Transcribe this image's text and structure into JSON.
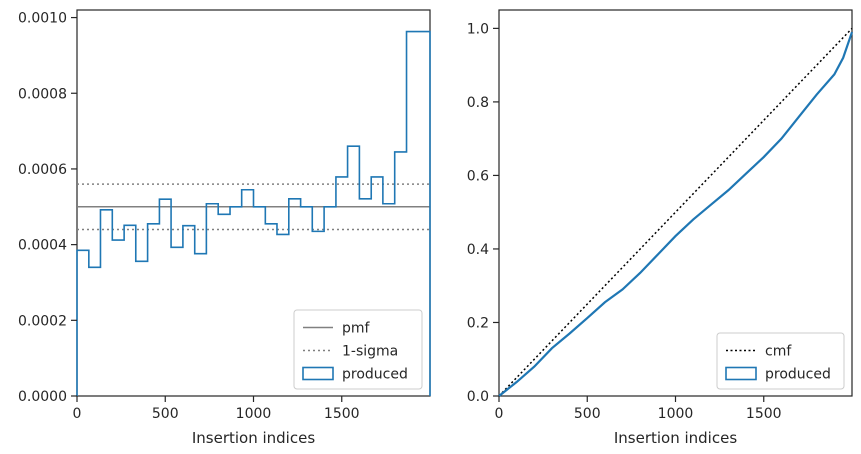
{
  "colors": {
    "produced": "#1f77b4",
    "pmf": "#808080",
    "sigma": "#808080",
    "cmf": "#000000"
  },
  "chart_data": [
    {
      "type": "step",
      "title": "",
      "xlabel": "Insertion indices",
      "ylabel": "",
      "xlim": [
        0,
        2000
      ],
      "ylim": [
        0,
        0.00102
      ],
      "xticks": [
        0,
        500,
        1000,
        1500
      ],
      "xtick_labels": [
        "0",
        "500",
        "1000",
        "1500"
      ],
      "yticks": [
        0,
        0.0002,
        0.0004,
        0.0006,
        0.0008,
        0.001
      ],
      "ytick_labels": [
        "0.0000",
        "0.0002",
        "0.0004",
        "0.0006",
        "0.0008",
        "0.0010"
      ],
      "legend": {
        "location": "lower right",
        "entries": [
          "pmf",
          "1-sigma",
          "produced"
        ]
      },
      "grid": false,
      "series": [
        {
          "name": "pmf",
          "kind": "hline",
          "y": 0.0005
        },
        {
          "name": "1-sigma",
          "kind": "hlines",
          "y": [
            0.00044,
            0.00056
          ]
        },
        {
          "name": "produced",
          "kind": "histogram-step",
          "bin_edges": [
            0,
            67,
            133,
            200,
            267,
            333,
            400,
            467,
            533,
            600,
            667,
            733,
            800,
            867,
            933,
            1000,
            1067,
            1133,
            1200,
            1267,
            1333,
            1400,
            1467,
            1533,
            1600,
            1667,
            1733,
            1800,
            1867,
            1933,
            2000
          ],
          "values": [
            0.000385,
            0.00034,
            0.000492,
            0.000412,
            0.000451,
            0.000356,
            0.000455,
            0.00052,
            0.000393,
            0.00045,
            0.000376,
            0.000508,
            0.00048,
            0.0005,
            0.000545,
            0.0005,
            0.000455,
            0.000427,
            0.000521,
            0.0005,
            0.000435,
            0.0005,
            0.000579,
            0.00066,
            0.000521,
            0.000579,
            0.000508,
            0.000645,
            0.000963,
            0.000963
          ]
        }
      ]
    },
    {
      "type": "line",
      "title": "",
      "xlabel": "Insertion indices",
      "ylabel": "",
      "xlim": [
        0,
        2000
      ],
      "ylim": [
        0,
        1.05
      ],
      "xticks": [
        0,
        500,
        1000,
        1500
      ],
      "xtick_labels": [
        "0",
        "500",
        "1000",
        "1500"
      ],
      "yticks": [
        0,
        0.2,
        0.4,
        0.6,
        0.8,
        1.0
      ],
      "ytick_labels": [
        "0.0",
        "0.2",
        "0.4",
        "0.6",
        "0.8",
        "1.0"
      ],
      "legend": {
        "location": "lower right",
        "entries": [
          "cmf",
          "produced"
        ]
      },
      "grid": false,
      "series": [
        {
          "name": "cmf",
          "x": [
            0,
            2000
          ],
          "y": [
            0,
            1.0
          ]
        },
        {
          "name": "produced",
          "x": [
            0,
            100,
            200,
            300,
            400,
            500,
            600,
            700,
            800,
            900,
            1000,
            1100,
            1200,
            1300,
            1400,
            1500,
            1600,
            1700,
            1800,
            1900,
            1950,
            2000
          ],
          "y": [
            0,
            0.038,
            0.08,
            0.13,
            0.17,
            0.212,
            0.255,
            0.29,
            0.335,
            0.385,
            0.435,
            0.48,
            0.52,
            0.56,
            0.605,
            0.65,
            0.7,
            0.76,
            0.82,
            0.875,
            0.92,
            0.99
          ]
        }
      ]
    }
  ]
}
